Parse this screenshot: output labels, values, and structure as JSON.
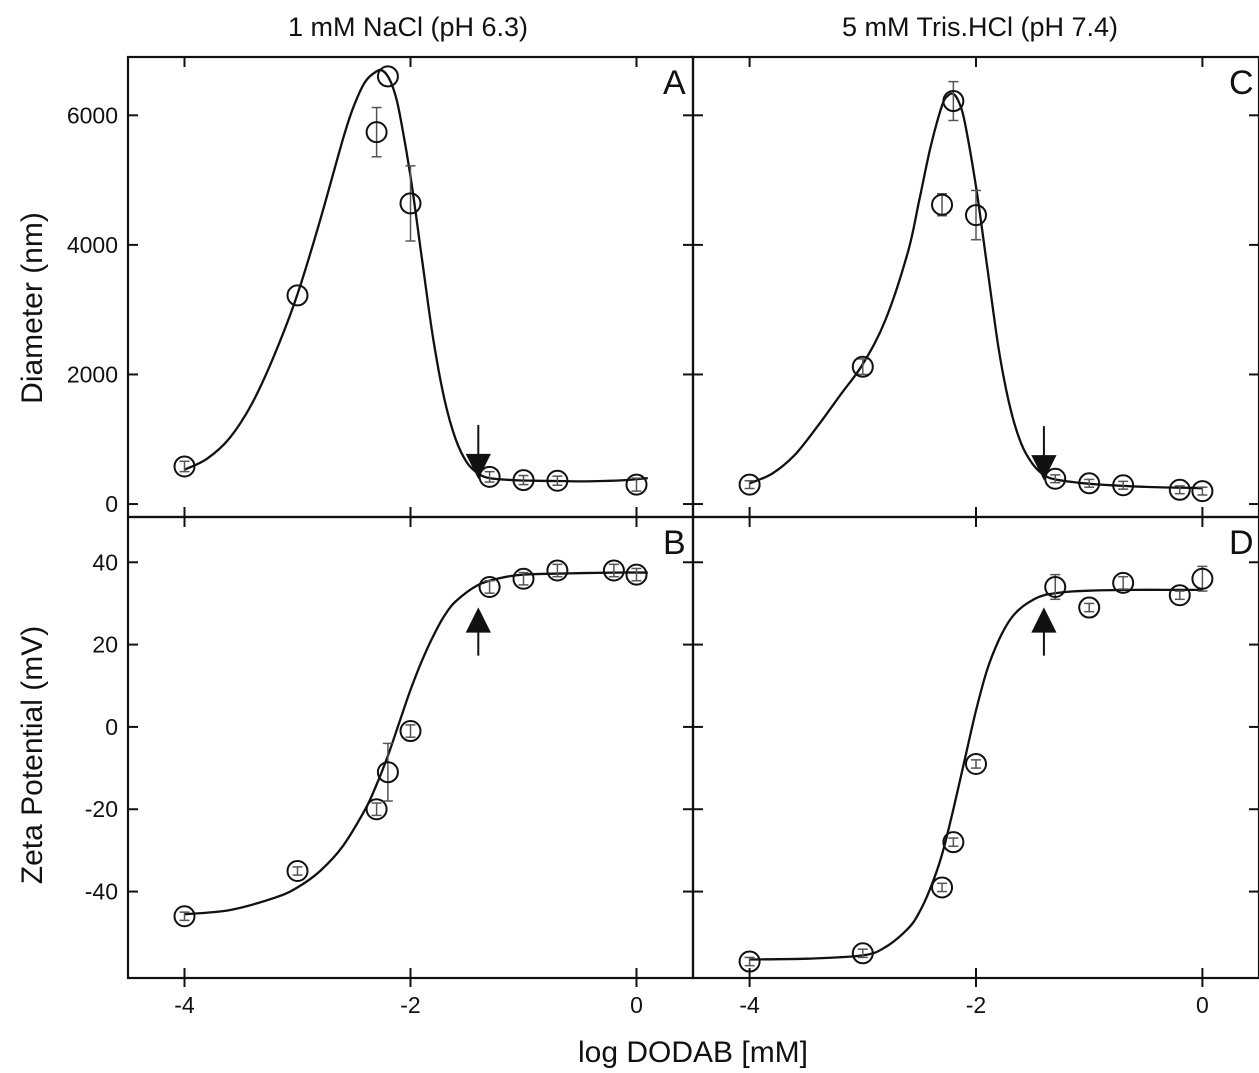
{
  "figure": {
    "x_axis_label": "log DODAB [mM]",
    "x_ticks": [
      -4,
      -2,
      0
    ],
    "xlim": [
      -4.5,
      0.5
    ],
    "columns": [
      {
        "title": "1 mM NaCl (pH 6.3)"
      },
      {
        "title": "5 mM Tris.HCl (pH 7.4)"
      }
    ],
    "rows": [
      {
        "y_axis_label": "Diameter (nm)",
        "ylim": [
          -200,
          6900
        ],
        "ticks": [
          0,
          2000,
          4000,
          6000
        ]
      },
      {
        "y_axis_label": "Zeta Potential (mV)",
        "ylim": [
          -61,
          51
        ],
        "ticks": [
          -40,
          -20,
          0,
          20,
          40
        ]
      }
    ]
  },
  "chart_data": [
    {
      "type": "scatter",
      "panel": "A",
      "row": 0,
      "col": 0,
      "xlabel": "log DODAB [mM]",
      "ylabel": "Diameter (nm)",
      "points": [
        {
          "x": -4.0,
          "y": 580,
          "err": 80
        },
        {
          "x": -3.0,
          "y": 3220,
          "err": 0
        },
        {
          "x": -2.3,
          "y": 5740,
          "err": 380
        },
        {
          "x": -2.2,
          "y": 6600,
          "err": 0
        },
        {
          "x": -2.0,
          "y": 4640,
          "err": 580
        },
        {
          "x": -1.3,
          "y": 420,
          "err": 80
        },
        {
          "x": -1.0,
          "y": 370,
          "err": 70
        },
        {
          "x": -0.7,
          "y": 360,
          "err": 70
        },
        {
          "x": 0.0,
          "y": 300,
          "err": 100
        }
      ],
      "fit": {
        "x": [
          -4.0,
          -3.8,
          -3.6,
          -3.4,
          -3.2,
          -3.0,
          -2.8,
          -2.6,
          -2.5,
          -2.4,
          -2.3,
          -2.25,
          -2.2,
          -2.15,
          -2.1,
          -2.0,
          -1.9,
          -1.8,
          -1.7,
          -1.6,
          -1.5,
          -1.4,
          -1.3,
          -1.1,
          -0.9,
          -0.7,
          -0.5,
          -0.3,
          -0.1,
          0.1
        ],
        "y": [
          530,
          700,
          1020,
          1560,
          2320,
          3240,
          4380,
          5620,
          6150,
          6520,
          6680,
          6690,
          6600,
          6400,
          6060,
          5060,
          3800,
          2560,
          1620,
          1000,
          640,
          470,
          400,
          370,
          360,
          355,
          350,
          355,
          370,
          400
        ]
      },
      "arrow": {
        "x": -1.4,
        "direction": "down"
      }
    },
    {
      "type": "scatter",
      "panel": "B",
      "row": 1,
      "col": 0,
      "xlabel": "log DODAB [mM]",
      "ylabel": "Zeta Potential (mV)",
      "points": [
        {
          "x": -4.0,
          "y": -46,
          "err": 1
        },
        {
          "x": -3.0,
          "y": -35,
          "err": 1
        },
        {
          "x": -2.3,
          "y": -20,
          "err": 1.5
        },
        {
          "x": -2.2,
          "y": -11,
          "err": 7
        },
        {
          "x": -2.0,
          "y": -1,
          "err": 1.5
        },
        {
          "x": -1.3,
          "y": 34,
          "err": 1.5
        },
        {
          "x": -1.0,
          "y": 36,
          "err": 1.5
        },
        {
          "x": -0.7,
          "y": 38,
          "err": 1.5
        },
        {
          "x": -0.2,
          "y": 38,
          "err": 1.5
        },
        {
          "x": 0.0,
          "y": 37,
          "err": 1.5
        }
      ],
      "fit": {
        "x": [
          -4.0,
          -3.6,
          -3.2,
          -3.0,
          -2.8,
          -2.6,
          -2.4,
          -2.3,
          -2.2,
          -2.1,
          -2.0,
          -1.9,
          -1.8,
          -1.7,
          -1.6,
          -1.4,
          -1.2,
          -1.0,
          -0.6,
          -0.2,
          0.1
        ],
        "y": [
          -45.5,
          -44.5,
          -41.5,
          -39,
          -35,
          -29,
          -20,
          -14,
          -7,
          1,
          9,
          16,
          22,
          27,
          30.5,
          34.5,
          36.2,
          37,
          37.3,
          37.5,
          37.5
        ]
      },
      "arrow": {
        "x": -1.4,
        "direction": "up"
      }
    },
    {
      "type": "scatter",
      "panel": "C",
      "row": 0,
      "col": 1,
      "xlabel": "log DODAB [mM]",
      "ylabel": "Diameter (nm)",
      "points": [
        {
          "x": -4.0,
          "y": 300,
          "err": 60
        },
        {
          "x": -3.0,
          "y": 2120,
          "err": 120
        },
        {
          "x": -2.3,
          "y": 4620,
          "err": 170
        },
        {
          "x": -2.2,
          "y": 6220,
          "err": 300
        },
        {
          "x": -2.0,
          "y": 4460,
          "err": 380
        },
        {
          "x": -1.3,
          "y": 390,
          "err": 60
        },
        {
          "x": -1.0,
          "y": 320,
          "err": 60
        },
        {
          "x": -0.7,
          "y": 290,
          "err": 60
        },
        {
          "x": -0.2,
          "y": 220,
          "err": 60
        },
        {
          "x": 0.0,
          "y": 200,
          "err": 60
        }
      ],
      "fit": {
        "x": [
          -4.0,
          -3.8,
          -3.6,
          -3.4,
          -3.2,
          -3.0,
          -2.8,
          -2.6,
          -2.5,
          -2.4,
          -2.3,
          -2.25,
          -2.2,
          -2.15,
          -2.1,
          -2.0,
          -1.9,
          -1.8,
          -1.7,
          -1.6,
          -1.5,
          -1.4,
          -1.3,
          -1.1,
          -0.9,
          -0.7,
          -0.5,
          -0.3,
          -0.1,
          0.0
        ],
        "y": [
          320,
          470,
          760,
          1200,
          1680,
          2160,
          2840,
          3900,
          4700,
          5520,
          6150,
          6300,
          6330,
          6200,
          5900,
          4900,
          3650,
          2400,
          1500,
          930,
          620,
          450,
          380,
          330,
          300,
          280,
          265,
          255,
          250,
          245
        ]
      },
      "arrow": {
        "x": -1.4,
        "direction": "down"
      }
    },
    {
      "type": "scatter",
      "panel": "D",
      "row": 1,
      "col": 1,
      "xlabel": "log DODAB [mM]",
      "ylabel": "Zeta Potential (mV)",
      "points": [
        {
          "x": -4.0,
          "y": -57,
          "err": 1
        },
        {
          "x": -3.0,
          "y": -55,
          "err": 1
        },
        {
          "x": -2.3,
          "y": -39,
          "err": 1
        },
        {
          "x": -2.2,
          "y": -28,
          "err": 1
        },
        {
          "x": -2.0,
          "y": -9,
          "err": 1
        },
        {
          "x": -1.3,
          "y": 34,
          "err": 3
        },
        {
          "x": -1.0,
          "y": 29,
          "err": 1
        },
        {
          "x": -0.7,
          "y": 35,
          "err": 1.5
        },
        {
          "x": -0.2,
          "y": 32,
          "err": 1
        },
        {
          "x": 0.0,
          "y": 36,
          "err": 3
        }
      ],
      "fit": {
        "x": [
          -4.0,
          -3.5,
          -3.0,
          -2.8,
          -2.6,
          -2.5,
          -2.4,
          -2.3,
          -2.2,
          -2.1,
          -2.0,
          -1.9,
          -1.8,
          -1.7,
          -1.6,
          -1.5,
          -1.4,
          -1.2,
          -1.0,
          -0.6,
          -0.2,
          0.0
        ],
        "y": [
          -56.5,
          -56.3,
          -55.5,
          -53.5,
          -49,
          -45,
          -39,
          -31,
          -20,
          -8,
          4,
          14,
          21,
          26,
          29,
          30.8,
          32,
          32.8,
          33.1,
          33.3,
          33.3,
          33.3
        ]
      },
      "arrow": {
        "x": -1.4,
        "direction": "up"
      }
    }
  ]
}
